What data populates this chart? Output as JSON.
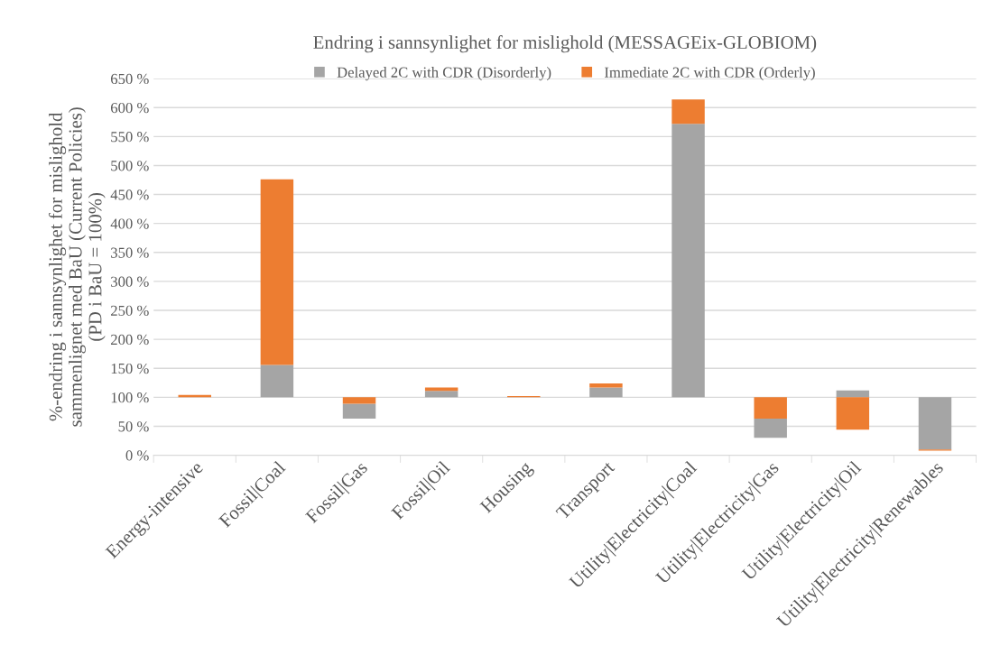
{
  "chart_data": {
    "type": "bar",
    "title": "Endring i sannsynlighet for mislighold (MESSAGEix-GLOBIOM)",
    "ylabel": "%-endring i sannsynlighet for mislighold\nsammenlignet med BaU (Current Policies)\n(PD i BaU = 100%)",
    "categories": [
      "Energy-intensive",
      "Fossil|Coal",
      "Fossil|Gas",
      "Fossil|Oil",
      "Housing",
      "Transport",
      "Utility|Electricity|Coal",
      "Utility|Electricity|Gas",
      "Utility|Electricity|Oil",
      "Utility|Electricity|Renewables"
    ],
    "series": [
      {
        "name": "Delayed 2C with CDR (Disorderly)",
        "color": "#a5a5a5",
        "base": [
          null,
          100,
          63,
          100,
          null,
          100,
          100,
          30,
          100,
          10
        ],
        "values": [
          null,
          56,
          26,
          11,
          null,
          17,
          472,
          33,
          12,
          90
        ]
      },
      {
        "name": "Immediate 2C with CDR (Orderly)",
        "color": "#ed7d31",
        "base": [
          100,
          156,
          89,
          111,
          100,
          117,
          572,
          63,
          44,
          8
        ],
        "values": [
          4,
          320,
          11,
          6,
          2,
          7,
          42,
          37,
          56,
          2
        ]
      }
    ],
    "ylim": [
      0,
      650
    ],
    "yticks": [
      {
        "value": 0,
        "label": "0 %"
      },
      {
        "value": 50,
        "label": "50 %"
      },
      {
        "value": 100,
        "label": "100 %"
      },
      {
        "value": 150,
        "label": "150 %"
      },
      {
        "value": 200,
        "label": "200 %"
      },
      {
        "value": 250,
        "label": "250 %"
      },
      {
        "value": 300,
        "label": "300 %"
      },
      {
        "value": 350,
        "label": "350 %"
      },
      {
        "value": 400,
        "label": "400 %"
      },
      {
        "value": 450,
        "label": "450 %"
      },
      {
        "value": 500,
        "label": "500 %"
      },
      {
        "value": 550,
        "label": "550 %"
      },
      {
        "value": 600,
        "label": "600 %"
      },
      {
        "value": 650,
        "label": "650 %"
      }
    ],
    "grid": "y",
    "legend": "top"
  }
}
